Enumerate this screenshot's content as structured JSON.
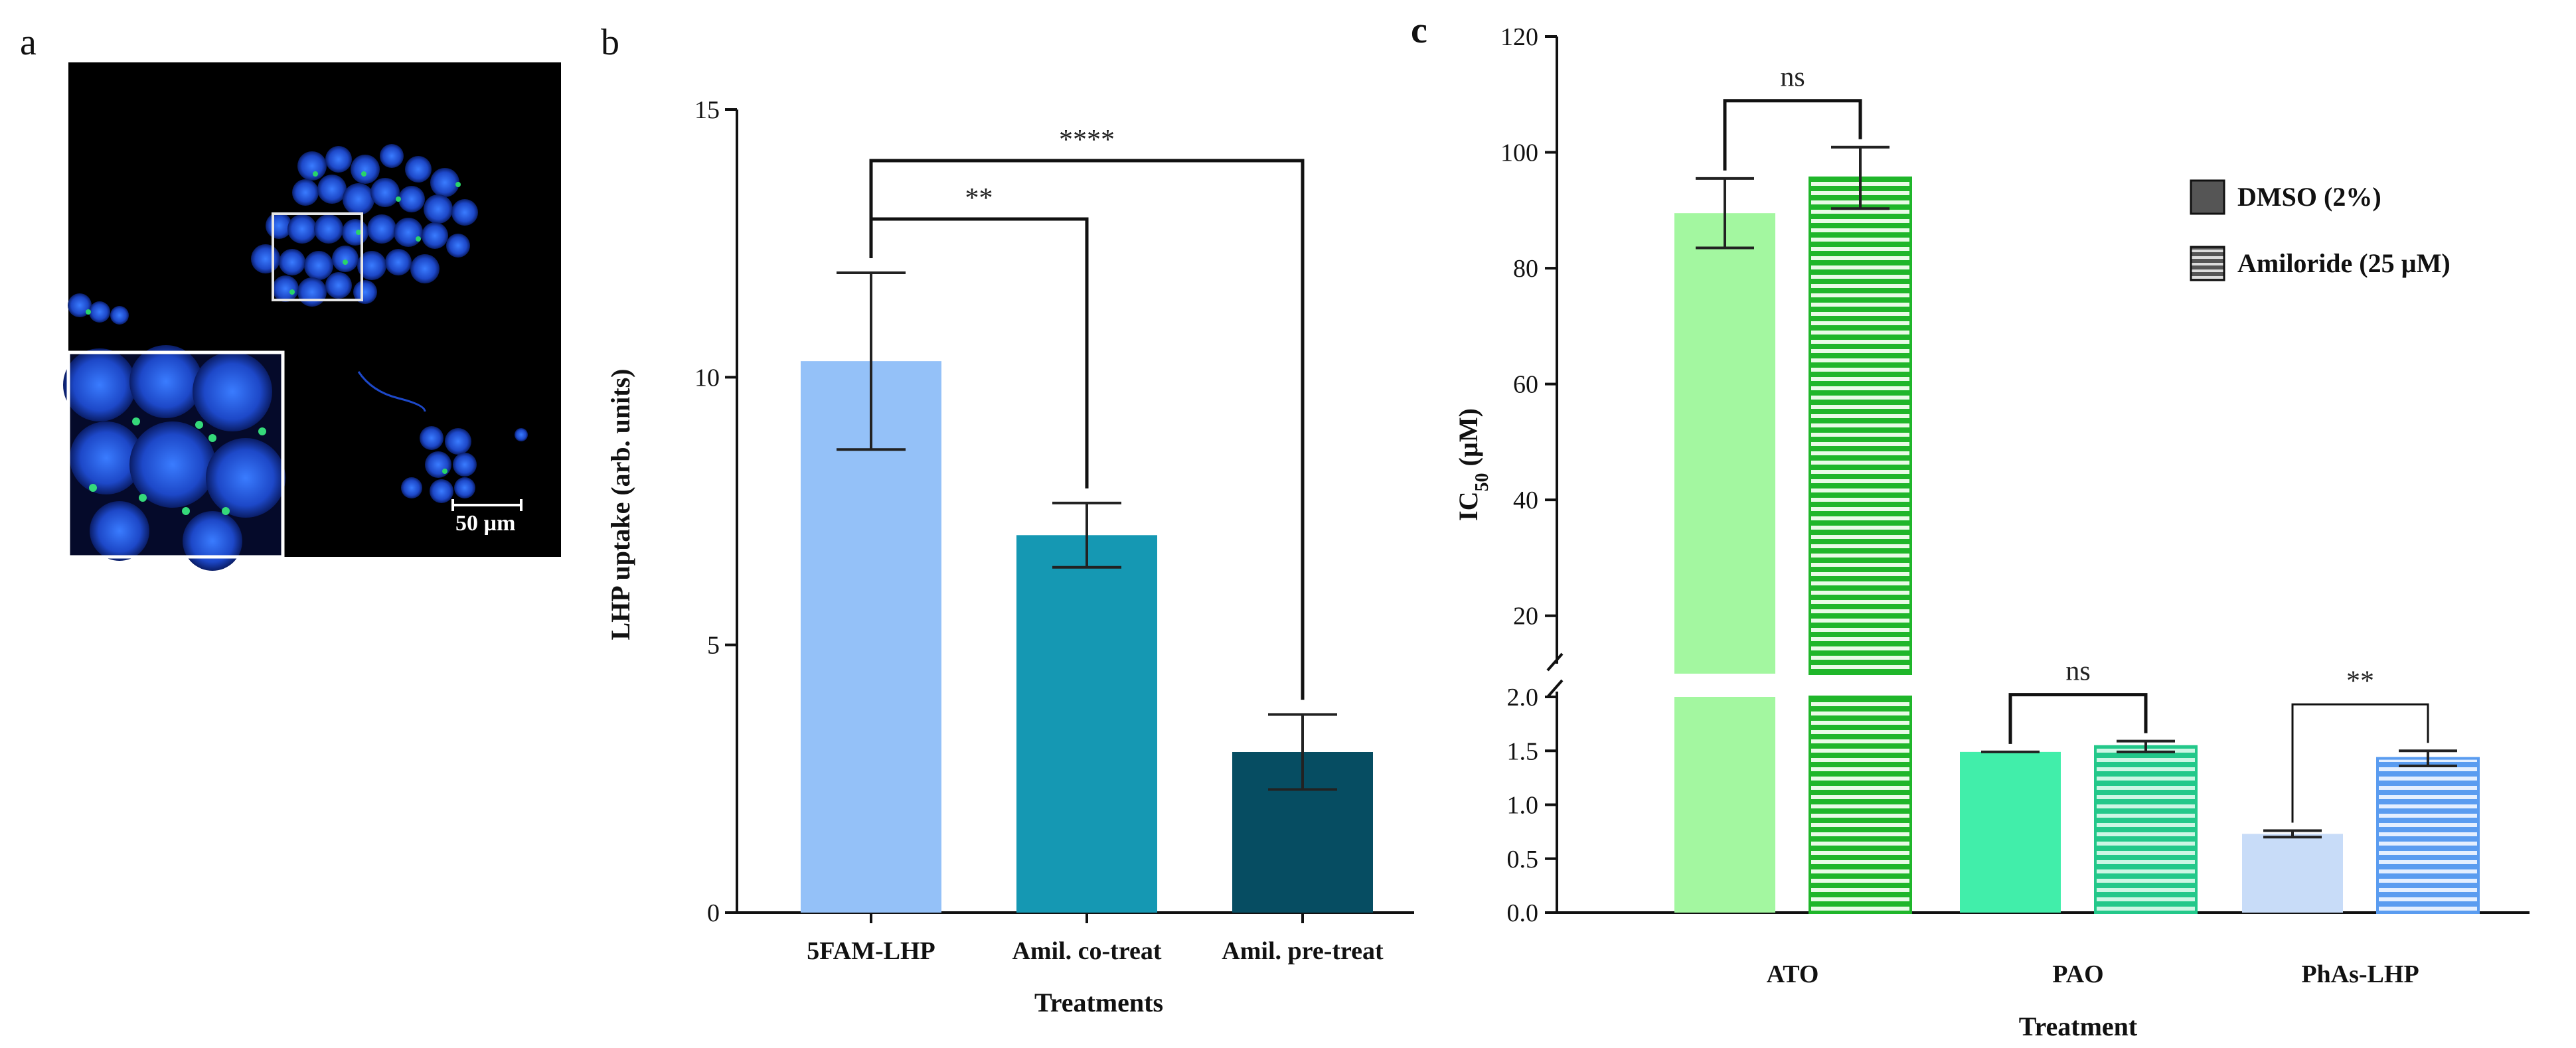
{
  "panels": {
    "a": {
      "label": "a",
      "image_description": "Confocal fluorescence micrograph: blue-stained nuclei with green punctate signal on black background, inset zoom at lower left",
      "scale_bar_label": "50 µm"
    },
    "b": {
      "label": "b"
    },
    "c": {
      "label": "c"
    }
  },
  "chart_data": [
    {
      "id": "b",
      "type": "bar",
      "title": "",
      "xlabel": "Treatments",
      "ylabel": "LHP uptake (arb. units)",
      "ylim": [
        0,
        15
      ],
      "yticks": [
        0,
        5,
        10,
        15
      ],
      "categories": [
        "5FAM-LHP",
        "Amil. co-treat",
        "Amil. pre-treat"
      ],
      "values": [
        10.3,
        7.05,
        3.0
      ],
      "errors": [
        1.65,
        0.6,
        0.7
      ],
      "colors": [
        "#94c1f8",
        "#1598b3",
        "#064d62"
      ],
      "significance": [
        {
          "from": 0,
          "to": 1,
          "label": "**"
        },
        {
          "from": 0,
          "to": 2,
          "label": "****"
        }
      ]
    },
    {
      "id": "c",
      "type": "bar",
      "title": "",
      "xlabel": "Treatment",
      "ylabel": "IC50 (µM)",
      "ylabel_main": "IC",
      "ylabel_sub": "50",
      "ylabel_unit": " (µM)",
      "axis_break": {
        "lower_range": [
          0,
          2.0
        ],
        "lower_ticks": [
          "0.0",
          "0.5",
          "1.0",
          "1.5",
          "2.0"
        ],
        "upper_range": [
          10,
          120
        ],
        "upper_ticks": [
          "20",
          "40",
          "60",
          "80",
          "100",
          "120"
        ]
      },
      "categories": [
        "ATO",
        "PAO",
        "PhAs-LHP"
      ],
      "series": [
        {
          "name": "DMSO (2%)",
          "pattern": "solid",
          "values": [
            89.5,
            1.49,
            0.73
          ],
          "errors": [
            6.0,
            0.0,
            0.03
          ]
        },
        {
          "name": "Amiloride (25 µM)",
          "pattern": "striped",
          "values": [
            95.6,
            1.54,
            1.43
          ],
          "errors": [
            5.3,
            0.05,
            0.07
          ]
        }
      ],
      "group_colors": [
        {
          "fill": "#a3f7a0",
          "striped_base": "#1fb62a",
          "border": "#1fb62a"
        },
        {
          "fill": "#41eeaa",
          "striped_base": "#23c88a",
          "border": "#23c88a"
        },
        {
          "fill": "#c8dcf8",
          "striped_base": "#5a9cf0",
          "border": "#5a9cf0"
        }
      ],
      "significance": [
        {
          "group": 0,
          "label": "ns"
        },
        {
          "group": 1,
          "label": "ns"
        },
        {
          "group": 2,
          "label": "**"
        }
      ],
      "legend_position": "top-right"
    }
  ]
}
